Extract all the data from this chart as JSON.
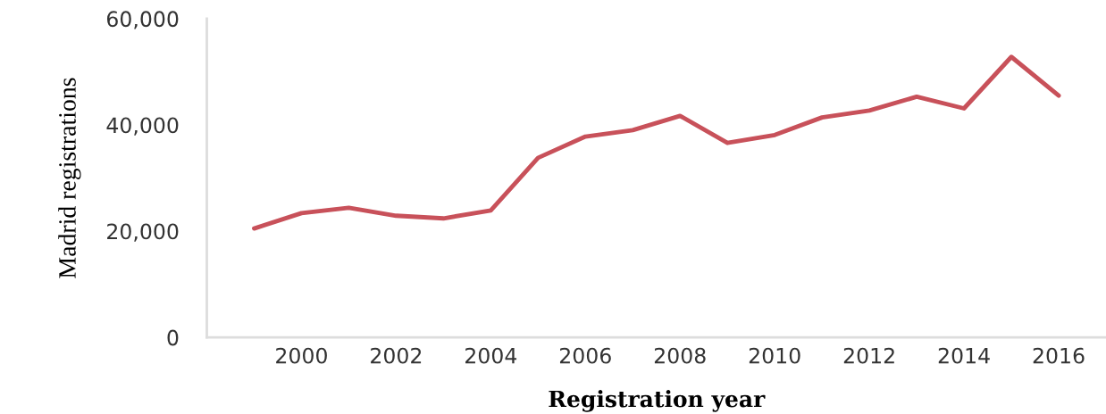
{
  "chart_data": {
    "type": "line",
    "xlabel": "Registration year",
    "ylabel": "Madrid registrations",
    "x": [
      1999,
      2000,
      2001,
      2002,
      2003,
      2004,
      2005,
      2006,
      2007,
      2008,
      2009,
      2010,
      2011,
      2012,
      2013,
      2014,
      2015,
      2016
    ],
    "series": [
      {
        "color": "#c8515a",
        "values": [
          20500,
          23400,
          24400,
          22900,
          22400,
          23900,
          33800,
          37800,
          39000,
          41700,
          36600,
          38100,
          41400,
          42700,
          45300,
          43100,
          52800,
          45500
        ]
      }
    ],
    "xlim": [
      1998,
      2017
    ],
    "xticks": [
      2000,
      2002,
      2004,
      2006,
      2008,
      2010,
      2012,
      2014,
      2016
    ],
    "ylim": [
      0,
      60000
    ],
    "yticks": [
      {
        "value": 0,
        "label": "0"
      },
      {
        "value": 20000,
        "label": "20,000"
      },
      {
        "value": 40000,
        "label": "40,000"
      },
      {
        "value": 60000,
        "label": "60,000"
      }
    ],
    "grid": false,
    "marker": "none",
    "line_style": "solid"
  }
}
